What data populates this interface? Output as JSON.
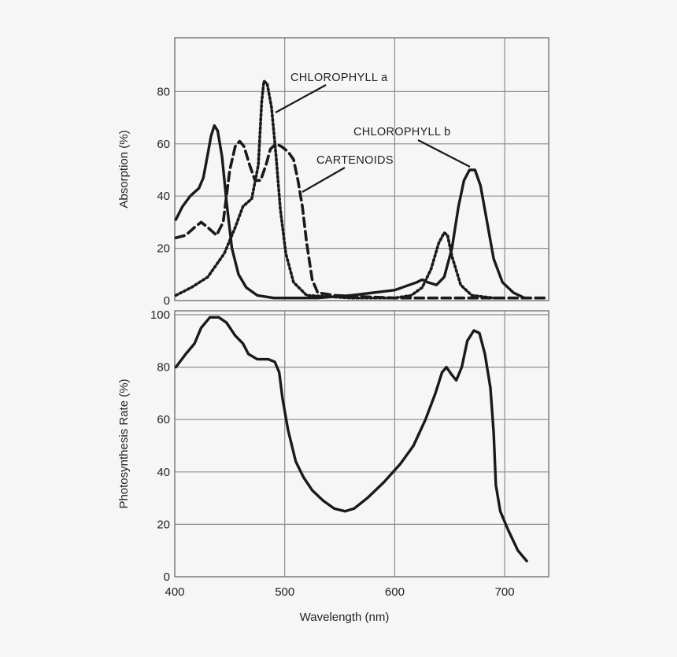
{
  "chart_data": [
    {
      "type": "line",
      "title": "",
      "xlabel": "",
      "ylabel": "Absorption (%)",
      "xlim": [
        400,
        740
      ],
      "ylim": [
        0,
        100
      ],
      "grid": true,
      "xticks": [
        500,
        600,
        700
      ],
      "yticks": [
        0,
        20,
        40,
        60,
        80
      ],
      "ytick_labels": [
        "0",
        "20",
        "40",
        "60",
        "80"
      ],
      "series": [
        {
          "name": "CHLOROPHYLL a",
          "style": "dotted",
          "points": [
            [
              401,
              2
            ],
            [
              415,
              5
            ],
            [
              430,
              9
            ],
            [
              445,
              18
            ],
            [
              455,
              28
            ],
            [
              462,
              36
            ],
            [
              470,
              39
            ],
            [
              476,
              52
            ],
            [
              479,
              76
            ],
            [
              481,
              84
            ],
            [
              484,
              83
            ],
            [
              488,
              74
            ],
            [
              492,
              56
            ],
            [
              496,
              35
            ],
            [
              501,
              18
            ],
            [
              508,
              7
            ],
            [
              520,
              2
            ],
            [
              560,
              1
            ],
            [
              600,
              1
            ],
            [
              615,
              2
            ],
            [
              625,
              5
            ],
            [
              633,
              12
            ],
            [
              640,
              22
            ],
            [
              645,
              26
            ],
            [
              648,
              25
            ],
            [
              652,
              17
            ],
            [
              660,
              6
            ],
            [
              670,
              2
            ],
            [
              690,
              1
            ]
          ]
        },
        {
          "name": "CARTENOIDS",
          "style": "dashed",
          "points": [
            [
              401,
              24
            ],
            [
              410,
              25
            ],
            [
              418,
              28
            ],
            [
              424,
              30
            ],
            [
              430,
              28
            ],
            [
              438,
              25
            ],
            [
              444,
              30
            ],
            [
              450,
              50
            ],
            [
              455,
              59
            ],
            [
              459,
              61
            ],
            [
              463,
              59
            ],
            [
              468,
              52
            ],
            [
              473,
              46
            ],
            [
              478,
              46
            ],
            [
              483,
              52
            ],
            [
              487,
              58
            ],
            [
              492,
              60
            ],
            [
              497,
              59
            ],
            [
              503,
              57
            ],
            [
              508,
              54
            ],
            [
              512,
              46
            ],
            [
              516,
              36
            ],
            [
              520,
              22
            ],
            [
              525,
              8
            ],
            [
              530,
              3
            ],
            [
              545,
              2
            ],
            [
              600,
              1
            ],
            [
              650,
              1
            ],
            [
              700,
              1
            ],
            [
              740,
              1
            ]
          ]
        },
        {
          "name": "CHLOROPHYLL b",
          "style": "solid",
          "points": [
            [
              401,
              31
            ],
            [
              407,
              36
            ],
            [
              414,
              40
            ],
            [
              422,
              43
            ],
            [
              426,
              47
            ],
            [
              430,
              56
            ],
            [
              433,
              63
            ],
            [
              436,
              67
            ],
            [
              439,
              65
            ],
            [
              443,
              55
            ],
            [
              447,
              38
            ],
            [
              452,
              20
            ],
            [
              458,
              10
            ],
            [
              465,
              5
            ],
            [
              475,
              2
            ],
            [
              490,
              1
            ],
            [
              530,
              1
            ],
            [
              560,
              2
            ],
            [
              600,
              4
            ],
            [
              620,
              7
            ],
            [
              625,
              8
            ],
            [
              630,
              7
            ],
            [
              638,
              6
            ],
            [
              645,
              9
            ],
            [
              652,
              20
            ],
            [
              658,
              36
            ],
            [
              663,
              46
            ],
            [
              668,
              50
            ],
            [
              673,
              50
            ],
            [
              678,
              44
            ],
            [
              684,
              30
            ],
            [
              690,
              16
            ],
            [
              698,
              7
            ],
            [
              708,
              3
            ],
            [
              718,
              1
            ]
          ]
        }
      ],
      "annotations": [
        "CHLOROPHYLL a",
        "CARTENOIDS",
        "CHLOROPHYLL b"
      ]
    },
    {
      "type": "line",
      "title": "",
      "xlabel": "Wavelength (nm)",
      "ylabel": "Photosynthesis Rate (%)",
      "xlim": [
        400,
        740
      ],
      "ylim": [
        0,
        100
      ],
      "grid": true,
      "xticks": [
        400,
        500,
        600,
        700
      ],
      "xtick_labels": [
        "400",
        "500",
        "600",
        "700"
      ],
      "yticks": [
        0,
        20,
        40,
        60,
        80,
        100
      ],
      "ytick_labels": [
        "0",
        "20",
        "40",
        "60",
        "80",
        "100"
      ],
      "series": [
        {
          "style": "solid",
          "points": [
            [
              401,
              80
            ],
            [
              410,
              85
            ],
            [
              418,
              89
            ],
            [
              424,
              95
            ],
            [
              432,
              99
            ],
            [
              440,
              99
            ],
            [
              447,
              97
            ],
            [
              455,
              92
            ],
            [
              462,
              89
            ],
            [
              467,
              85
            ],
            [
              475,
              83
            ],
            [
              485,
              83
            ],
            [
              491,
              82
            ],
            [
              495,
              78
            ],
            [
              498,
              68
            ],
            [
              503,
              56
            ],
            [
              510,
              44
            ],
            [
              517,
              38
            ],
            [
              525,
              33
            ],
            [
              535,
              29
            ],
            [
              545,
              26
            ],
            [
              555,
              25
            ],
            [
              563,
              26
            ],
            [
              575,
              30
            ],
            [
              590,
              36
            ],
            [
              605,
              43
            ],
            [
              617,
              50
            ],
            [
              628,
              60
            ],
            [
              637,
              70
            ],
            [
              643,
              78
            ],
            [
              647,
              80
            ],
            [
              652,
              77
            ],
            [
              656,
              75
            ],
            [
              661,
              80
            ],
            [
              666,
              90
            ],
            [
              672,
              94
            ],
            [
              677,
              93
            ],
            [
              682,
              85
            ],
            [
              687,
              72
            ],
            [
              690,
              55
            ],
            [
              692,
              35
            ],
            [
              696,
              25
            ],
            [
              703,
              18
            ],
            [
              712,
              10
            ],
            [
              720,
              6
            ]
          ]
        }
      ]
    }
  ]
}
